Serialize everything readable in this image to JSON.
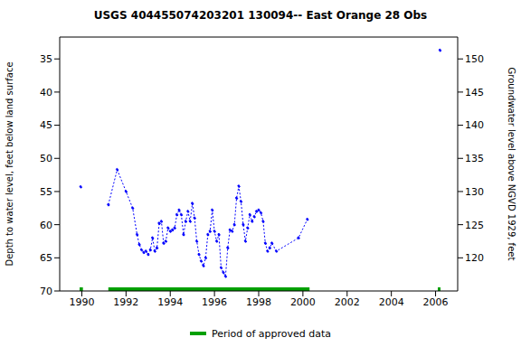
{
  "chart_data": {
    "type": "line",
    "title": "USGS 404455074203201 130094-- East Orange 28 Obs",
    "x_label": "",
    "y_label": "Depth to water level, feet below land surface",
    "y2_label": "Groundwater level above NGVD 1929, feet",
    "x": [
      1989.95,
      1990.5,
      1991.2,
      1991.6,
      1992.0,
      1992.3,
      1992.5,
      1992.6,
      1992.7,
      1992.8,
      1992.9,
      1993.0,
      1993.1,
      1993.2,
      1993.3,
      1993.4,
      1993.5,
      1993.6,
      1993.7,
      1993.8,
      1993.9,
      1994.0,
      1994.1,
      1994.2,
      1994.3,
      1994.4,
      1994.5,
      1994.6,
      1994.7,
      1994.8,
      1994.9,
      1995.0,
      1995.1,
      1995.2,
      1995.3,
      1995.4,
      1995.5,
      1995.6,
      1995.7,
      1995.8,
      1995.9,
      1996.0,
      1996.1,
      1996.2,
      1996.3,
      1996.4,
      1996.5,
      1996.6,
      1996.7,
      1996.8,
      1996.9,
      1997.0,
      1997.1,
      1997.2,
      1997.3,
      1997.4,
      1997.5,
      1997.6,
      1997.7,
      1997.8,
      1997.9,
      1998.0,
      1998.1,
      1998.2,
      1998.3,
      1998.4,
      1998.5,
      1998.6,
      1998.8,
      1999.8,
      2000.2,
      2003.0,
      2006.2
    ],
    "series": [
      {
        "name": "Depth to water level",
        "color": "#0000ff",
        "marker": "dot",
        "line_style": "dotted",
        "values": [
          54.3,
          null,
          57,
          51.7,
          55,
          57.5,
          61.5,
          63,
          63.8,
          64.2,
          64,
          64.5,
          63.8,
          62,
          64,
          63.5,
          59.8,
          59.5,
          62.8,
          62.5,
          60.5,
          61,
          60.8,
          60.5,
          58.5,
          57.8,
          58.5,
          61.5,
          59.5,
          58,
          59.5,
          56.8,
          59,
          62.5,
          64.5,
          65.5,
          66.2,
          65,
          61.5,
          61,
          57.8,
          61,
          62.5,
          61.5,
          66.5,
          67.2,
          67.8,
          63.5,
          60.8,
          61,
          60,
          56,
          54.2,
          56.5,
          60,
          62.5,
          60.5,
          58.5,
          59.5,
          58.8,
          58,
          57.8,
          58.2,
          59.5,
          62.8,
          64,
          63.5,
          62.8,
          64,
          62,
          59.2,
          null,
          33.7
        ]
      }
    ],
    "xlim": [
      1989,
      2007
    ],
    "xticks": [
      1990,
      1992,
      1994,
      1996,
      1998,
      2000,
      2002,
      2004,
      2006
    ],
    "ylim": [
      31.7,
      70
    ],
    "yticks": [
      35,
      40,
      45,
      50,
      55,
      60,
      65,
      70
    ],
    "y2lim": [
      115,
      153.3
    ],
    "y2ticks": [
      120,
      125,
      130,
      135,
      140,
      145,
      150
    ],
    "approved_periods": {
      "name": "Period of approved data",
      "color": "#00a000",
      "periods": [
        [
          1989.9,
          1990.05
        ],
        [
          1991.2,
          2000.3
        ],
        [
          2006.1,
          2006.2
        ]
      ]
    },
    "grid": false
  }
}
